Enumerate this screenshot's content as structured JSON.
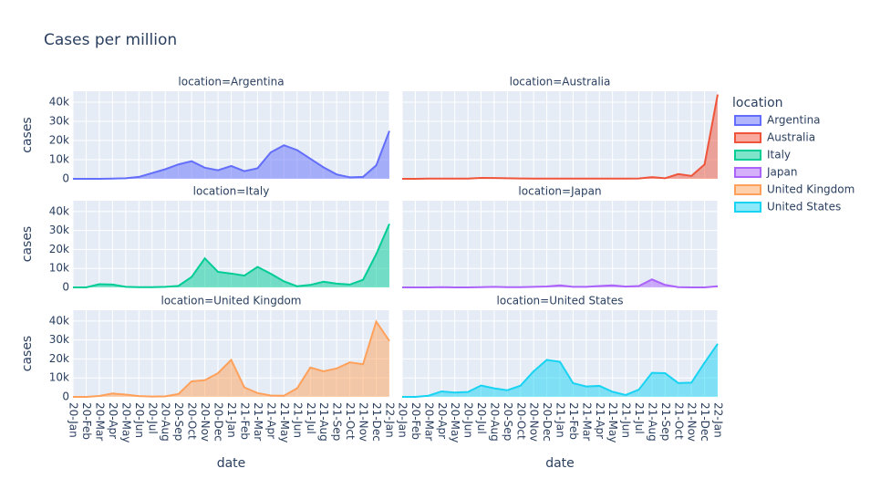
{
  "chart_data": {
    "type": "area",
    "title": "Cases per million",
    "legend_title": "location",
    "xlabel": "date",
    "ylabel": "cases",
    "categories": [
      "20-Jan",
      "20-Feb",
      "20-Mar",
      "20-Apr",
      "20-May",
      "20-Jun",
      "20-Jul",
      "20-Aug",
      "20-Sep",
      "20-Oct",
      "20-Nov",
      "20-Dec",
      "21-Jan",
      "21-Feb",
      "21-Mar",
      "21-Apr",
      "21-May",
      "21-Jun",
      "21-Jul",
      "21-Aug",
      "21-Sep",
      "21-Oct",
      "21-Nov",
      "21-Dec",
      "22-Jan"
    ],
    "ylim": [
      0,
      45700
    ],
    "yticks": [
      0,
      {
        "value": 10000,
        "label": "10k"
      },
      {
        "value": 20000,
        "label": "20k"
      },
      {
        "value": 30000,
        "label": "30k"
      },
      {
        "value": 40000,
        "label": "40k"
      }
    ],
    "grid": true,
    "facets": [
      {
        "title": "location=Argentina",
        "series": [
          {
            "name": "Argentina",
            "color": "#636efa",
            "values": [
              0,
              0,
              0,
              100,
              300,
              1000,
              3000,
              5000,
              7500,
              9200,
              5800,
              4500,
              6700,
              4000,
              5500,
              13800,
              17500,
              15000,
              10500,
              6000,
              2300,
              800,
              1000,
              7000,
              25000
            ]
          }
        ]
      },
      {
        "title": "location=Australia",
        "series": [
          {
            "name": "Australia",
            "color": "#ef553b",
            "values": [
              0,
              0,
              100,
              100,
              100,
              100,
              500,
              400,
              300,
              200,
              100,
              100,
              100,
              100,
              100,
              100,
              100,
              100,
              200,
              900,
              300,
              2500,
              1500,
              7500,
              44000
            ]
          }
        ]
      },
      {
        "title": "location=Italy",
        "series": [
          {
            "name": "Italy",
            "color": "#00cc96",
            "values": [
              0,
              0,
              1700,
              1500,
              300,
              100,
              100,
              300,
              800,
              5500,
              15300,
              8200,
              7300,
              6200,
              10800,
              7200,
              3200,
              600,
              1300,
              3000,
              2000,
              1500,
              4000,
              17500,
              33500
            ]
          }
        ]
      },
      {
        "title": "location=Japan",
        "series": [
          {
            "name": "Japan",
            "color": "#ab63fa",
            "values": [
              0,
              0,
              0,
              100,
              0,
              0,
              100,
              300,
              100,
              100,
              300,
              500,
              1100,
              300,
              300,
              700,
              1100,
              400,
              700,
              4200,
              1300,
              100,
              0,
              0,
              600
            ]
          }
        ]
      },
      {
        "title": "location=United Kingdom",
        "series": [
          {
            "name": "United Kingdom",
            "color": "#ffa15a",
            "values": [
              0,
              0,
              500,
              1800,
              1200,
              400,
              200,
              300,
              1500,
              8200,
              8800,
              12500,
              19500,
              5000,
              2000,
              700,
              600,
              4500,
              15500,
              13500,
              15000,
              18200,
              17200,
              39700,
              29500
            ]
          }
        ]
      },
      {
        "title": "location=United States",
        "series": [
          {
            "name": "United States",
            "color": "#19d3f3",
            "values": [
              0,
              0,
              600,
              2900,
              2300,
              2600,
              6000,
              4500,
              3500,
              5900,
              13500,
              19500,
              18500,
              7200,
              5500,
              5800,
              2700,
              1000,
              3800,
              12700,
              12500,
              7300,
              7500,
              18000,
              28000
            ]
          }
        ]
      }
    ]
  }
}
